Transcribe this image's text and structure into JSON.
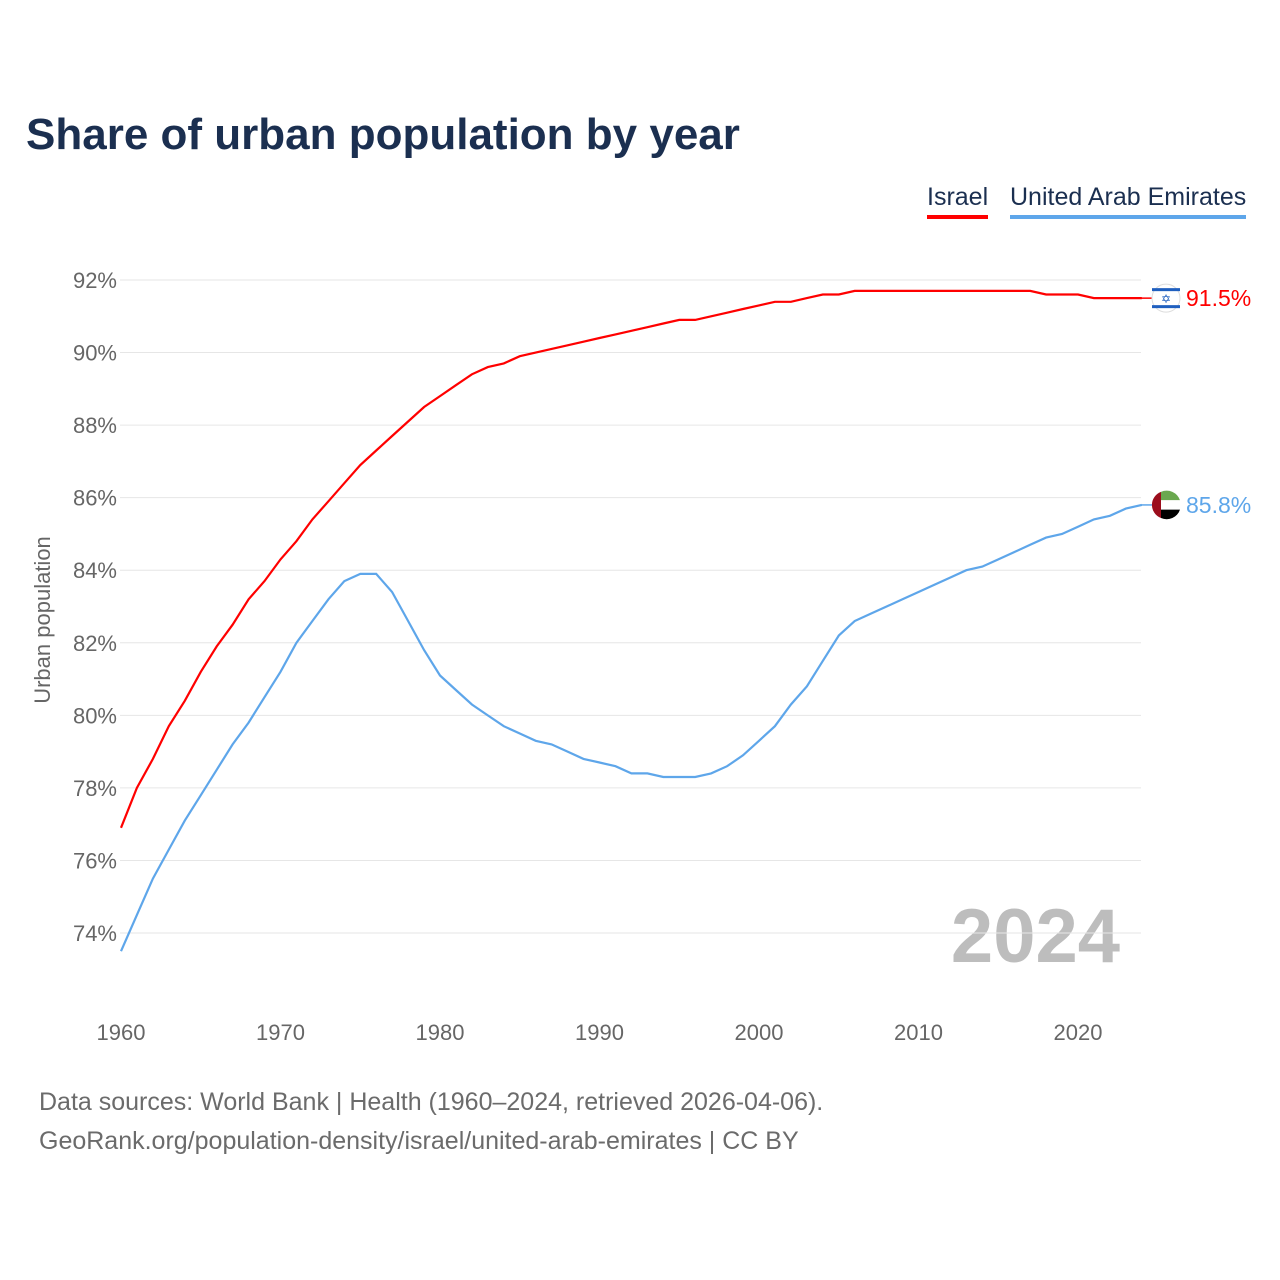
{
  "chart_data": {
    "type": "line",
    "title": "Share of urban population by year",
    "xlabel": "",
    "ylabel": "Urban population",
    "xlim": [
      1960,
      2024
    ],
    "ylim": [
      74,
      92
    ],
    "yticks": [
      "74%",
      "76%",
      "78%",
      "80%",
      "82%",
      "84%",
      "86%",
      "88%",
      "90%",
      "92%"
    ],
    "ytick_values": [
      74,
      76,
      78,
      80,
      82,
      84,
      86,
      88,
      90,
      92
    ],
    "xticks": [
      "1960",
      "1970",
      "1980",
      "1990",
      "2000",
      "2010",
      "2020"
    ],
    "xtick_values": [
      1960,
      1970,
      1980,
      1990,
      2000,
      2010,
      2020
    ],
    "grid": true,
    "legend_position": "top-right",
    "watermark_year": "2024",
    "x": [
      1960,
      1961,
      1962,
      1963,
      1964,
      1965,
      1966,
      1967,
      1968,
      1969,
      1970,
      1971,
      1972,
      1973,
      1974,
      1975,
      1976,
      1977,
      1978,
      1979,
      1980,
      1981,
      1982,
      1983,
      1984,
      1985,
      1986,
      1987,
      1988,
      1989,
      1990,
      1991,
      1992,
      1993,
      1994,
      1995,
      1996,
      1997,
      1998,
      1999,
      2000,
      2001,
      2002,
      2003,
      2004,
      2005,
      2006,
      2007,
      2008,
      2009,
      2010,
      2011,
      2012,
      2013,
      2014,
      2015,
      2016,
      2017,
      2018,
      2019,
      2020,
      2021,
      2022,
      2023,
      2024
    ],
    "series": [
      {
        "name": "Israel",
        "color": "#ff0000",
        "end_label": "91.5%",
        "values": [
          76.9,
          78.0,
          78.8,
          79.7,
          80.4,
          81.2,
          81.9,
          82.5,
          83.2,
          83.7,
          84.3,
          84.8,
          85.4,
          85.9,
          86.4,
          86.9,
          87.3,
          87.7,
          88.1,
          88.5,
          88.8,
          89.1,
          89.4,
          89.6,
          89.7,
          89.9,
          90.0,
          90.1,
          90.2,
          90.3,
          90.4,
          90.5,
          90.6,
          90.7,
          90.8,
          90.9,
          90.9,
          91.0,
          91.1,
          91.2,
          91.3,
          91.4,
          91.4,
          91.5,
          91.6,
          91.6,
          91.7,
          91.7,
          91.7,
          91.7,
          91.7,
          91.7,
          91.7,
          91.7,
          91.7,
          91.7,
          91.7,
          91.7,
          91.6,
          91.6,
          91.6,
          91.5,
          91.5,
          91.5,
          91.5
        ]
      },
      {
        "name": "United Arab Emirates",
        "color": "#5ea6ea",
        "end_label": "85.8%",
        "values": [
          73.5,
          74.5,
          75.5,
          76.3,
          77.1,
          77.8,
          78.5,
          79.2,
          79.8,
          80.5,
          81.2,
          82.0,
          82.6,
          83.2,
          83.7,
          83.9,
          83.9,
          83.4,
          82.6,
          81.8,
          81.1,
          80.7,
          80.3,
          80.0,
          79.7,
          79.5,
          79.3,
          79.2,
          79.0,
          78.8,
          78.7,
          78.6,
          78.4,
          78.4,
          78.3,
          78.3,
          78.3,
          78.4,
          78.6,
          78.9,
          79.3,
          79.7,
          80.3,
          80.8,
          81.5,
          82.2,
          82.6,
          82.8,
          83.0,
          83.2,
          83.4,
          83.6,
          83.8,
          84.0,
          84.1,
          84.3,
          84.5,
          84.7,
          84.9,
          85.0,
          85.2,
          85.4,
          85.5,
          85.7,
          85.8
        ]
      }
    ]
  },
  "footer": {
    "line1": "Data sources: World Bank | Health (1960–2024, retrieved 2026-04-06).",
    "line2": "GeoRank.org/population-density/israel/united-arab-emirates | CC BY"
  }
}
